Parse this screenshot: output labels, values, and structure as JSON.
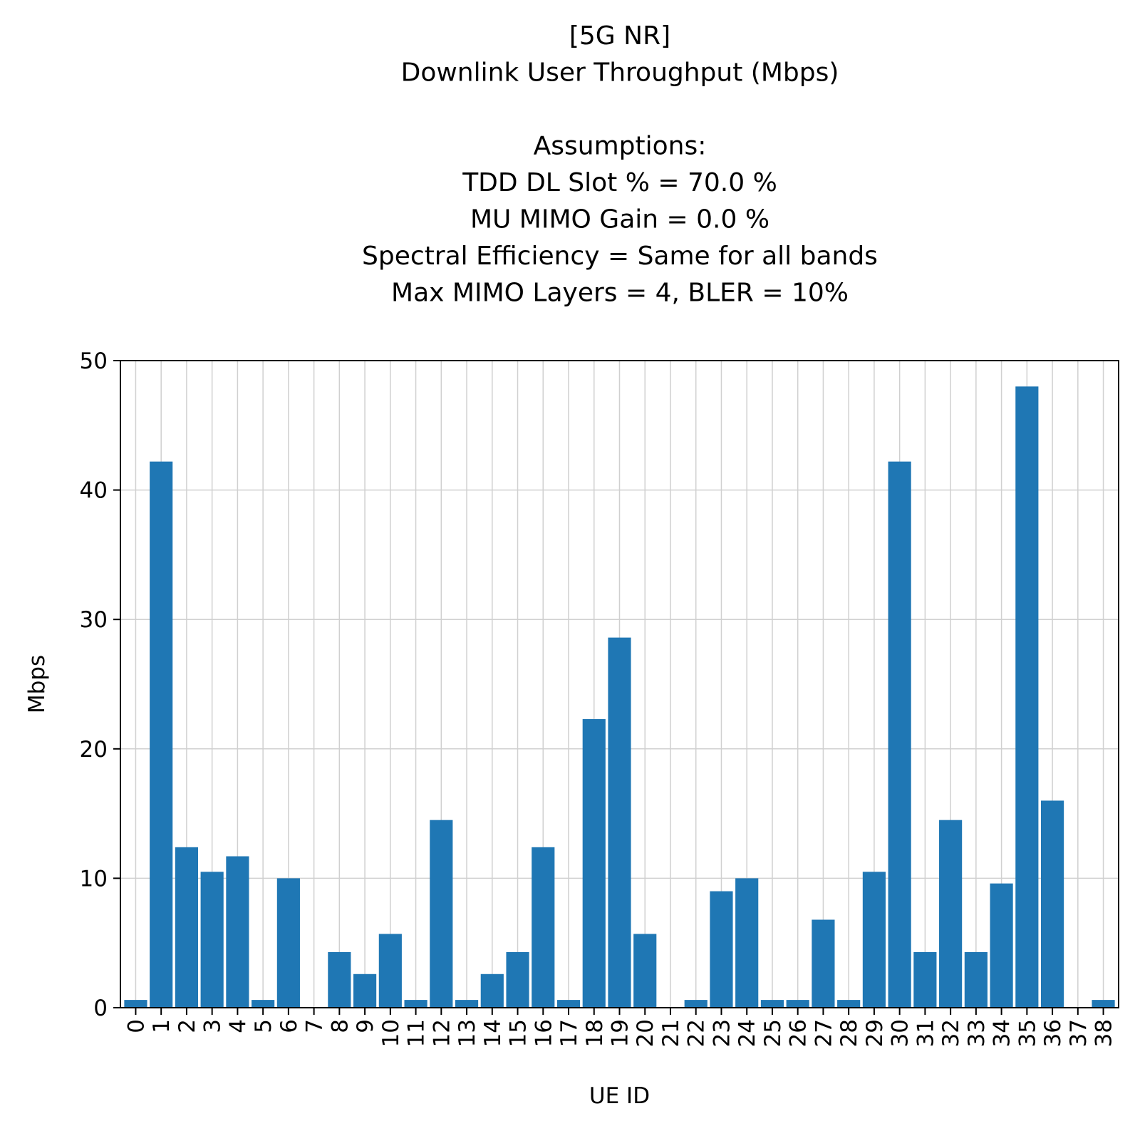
{
  "chart_data": {
    "type": "bar",
    "title_lines": [
      "[5G NR]",
      "Downlink User Throughput (Mbps)",
      "",
      "Assumptions:",
      "TDD DL Slot % = 70.0 %",
      "MU MIMO Gain = 0.0 %",
      "Spectral Efficiency = Same for all bands",
      "Max MIMO Layers = 4, BLER = 10%"
    ],
    "xlabel": "UE ID",
    "ylabel": "Mbps",
    "ylim": [
      0,
      50
    ],
    "yticks": [
      0,
      10,
      20,
      30,
      40,
      50
    ],
    "grid": true,
    "bar_color": "#1f77b4",
    "categories": [
      "0",
      "1",
      "2",
      "3",
      "4",
      "5",
      "6",
      "7",
      "8",
      "9",
      "10",
      "11",
      "12",
      "13",
      "14",
      "15",
      "16",
      "17",
      "18",
      "19",
      "20",
      "21",
      "22",
      "23",
      "24",
      "25",
      "26",
      "27",
      "28",
      "29",
      "30",
      "31",
      "32",
      "33",
      "34",
      "35",
      "36",
      "37",
      "38"
    ],
    "values": [
      0.6,
      42.2,
      12.4,
      10.5,
      11.7,
      0.6,
      10.0,
      0.0,
      4.3,
      2.6,
      5.7,
      0.6,
      14.5,
      0.6,
      2.6,
      4.3,
      12.4,
      0.6,
      22.3,
      28.6,
      5.7,
      0.0,
      0.6,
      9.0,
      10.0,
      0.6,
      0.6,
      6.8,
      0.6,
      10.5,
      42.2,
      4.3,
      14.5,
      4.3,
      9.6,
      48.0,
      16.0,
      0.0,
      0.6
    ]
  }
}
